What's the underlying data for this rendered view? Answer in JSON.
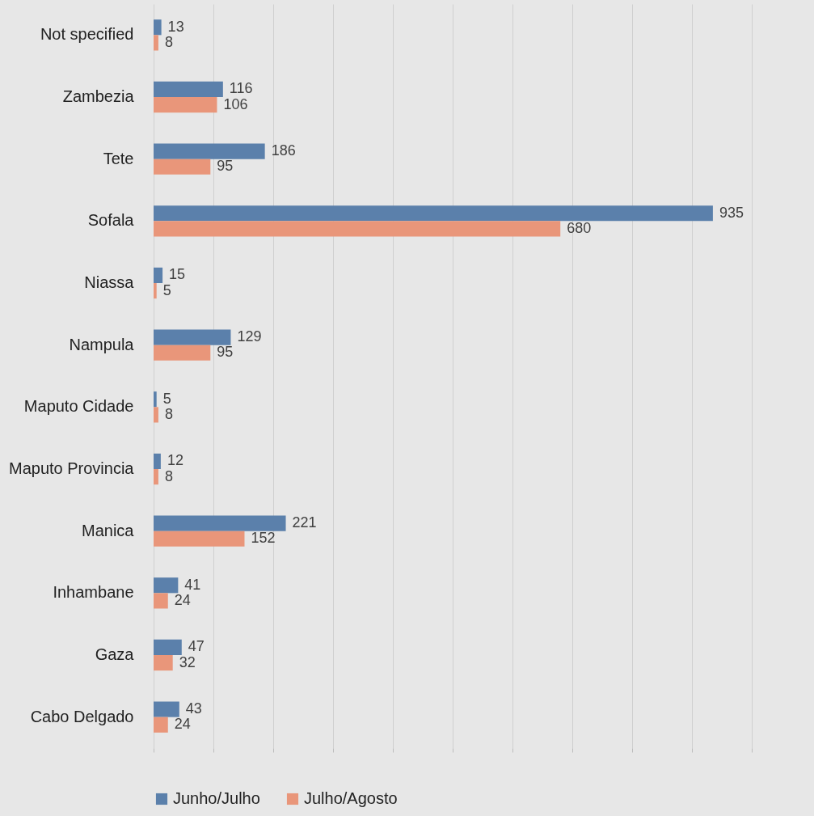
{
  "chart_data": {
    "type": "bar",
    "orientation": "horizontal",
    "categories": [
      "Not specified",
      "Zambezia",
      "Tete",
      "Sofala",
      "Niassa",
      "Nampula",
      "Maputo Cidade",
      "Maputo Provincia",
      "Manica",
      "Inhambane",
      "Gaza",
      "Cabo Delgado"
    ],
    "series": [
      {
        "name": "Junho/Julho",
        "color": "#5b80ab",
        "values": [
          13,
          116,
          186,
          935,
          15,
          129,
          5,
          12,
          221,
          41,
          47,
          43
        ]
      },
      {
        "name": "Julho/Agosto",
        "color": "#e9967a",
        "values": [
          8,
          106,
          95,
          680,
          5,
          95,
          8,
          8,
          152,
          24,
          32,
          24
        ]
      }
    ],
    "xlim": [
      0,
      1000
    ],
    "xticks": [
      {
        "value": 0,
        "label": null
      },
      {
        "value": 100,
        "label": null
      },
      {
        "value": 200,
        "label": null
      },
      {
        "value": 300,
        "label": null
      },
      {
        "value": 400,
        "label": null
      },
      {
        "value": 500,
        "label": null
      },
      {
        "value": 600,
        "label": null
      },
      {
        "value": 700,
        "label": null
      },
      {
        "value": 800,
        "label": null
      },
      {
        "value": 900,
        "label": null
      },
      {
        "value": 1000,
        "label": null
      }
    ],
    "grid": "x",
    "legend": "bottom",
    "data_labels": true
  }
}
